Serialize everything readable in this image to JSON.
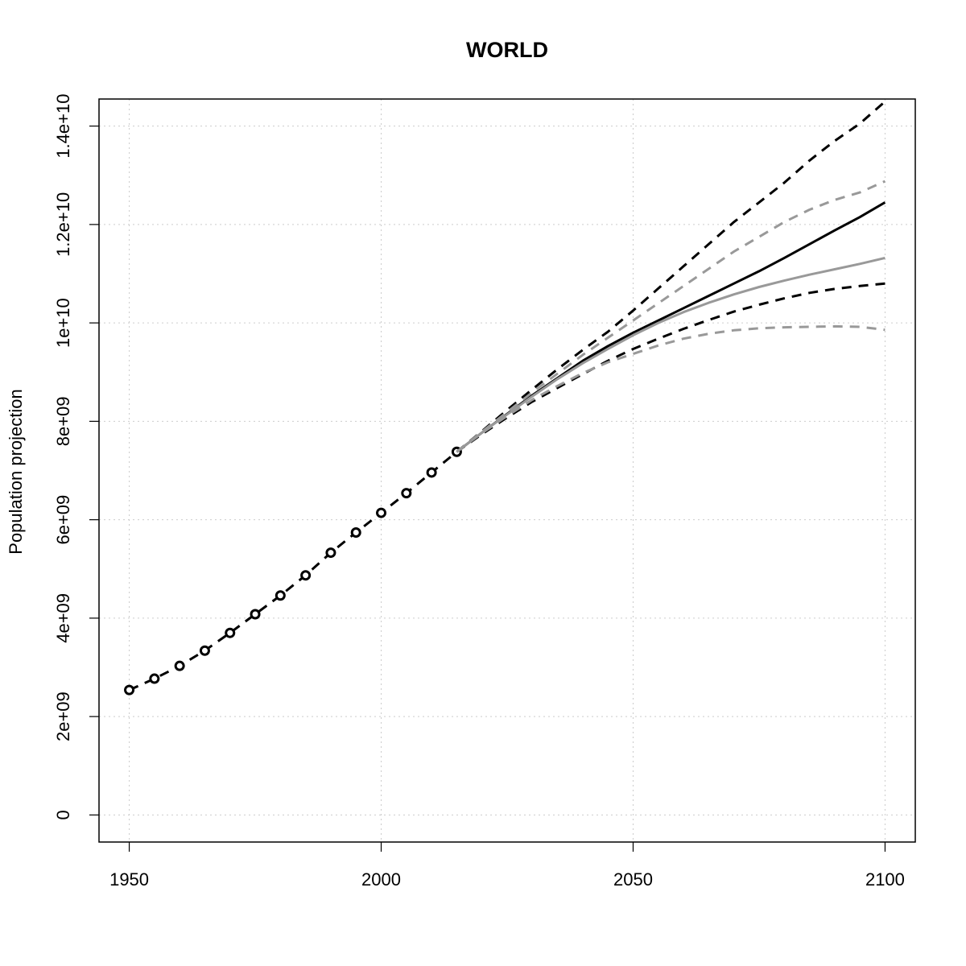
{
  "chart_data": {
    "type": "line",
    "title": "WORLD",
    "xlabel": "",
    "ylabel": "Population projection",
    "xlim": [
      1944,
      2106
    ],
    "ylim": [
      -550000000,
      14550000000
    ],
    "grid": true,
    "legend": "none",
    "x_ticks": [
      1950,
      2000,
      2050,
      2100
    ],
    "y_ticks": [
      {
        "value": 0,
        "label": "0"
      },
      {
        "value": 2000000000,
        "label": "2e+09"
      },
      {
        "value": 4000000000,
        "label": "4e+09"
      },
      {
        "value": 6000000000,
        "label": "6e+09"
      },
      {
        "value": 8000000000,
        "label": "8e+09"
      },
      {
        "value": 10000000000,
        "label": "1e+10"
      },
      {
        "value": 12000000000,
        "label": "1.2e+10"
      },
      {
        "value": 14000000000,
        "label": "1.4e+10"
      }
    ],
    "series": [
      {
        "style": "observed",
        "color": "#000000",
        "dash": true,
        "markers": "circle",
        "x": [
          1950,
          1955,
          1960,
          1965,
          1970,
          1975,
          1980,
          1985,
          1990,
          1995,
          2000,
          2005,
          2010,
          2015
        ],
        "y": [
          2540000000,
          2770000000,
          3030000000,
          3340000000,
          3700000000,
          4080000000,
          4460000000,
          4870000000,
          5330000000,
          5740000000,
          6140000000,
          6540000000,
          6960000000,
          7380000000
        ]
      },
      {
        "style": "median",
        "color": "#000000",
        "dash": false,
        "x": [
          2015,
          2020,
          2025,
          2030,
          2035,
          2040,
          2045,
          2050,
          2055,
          2060,
          2065,
          2070,
          2075,
          2080,
          2085,
          2090,
          2095,
          2100
        ],
        "y": [
          7380000000,
          7770000000,
          8150000000,
          8530000000,
          8880000000,
          9230000000,
          9530000000,
          9800000000,
          10050000000,
          10300000000,
          10550000000,
          10800000000,
          11050000000,
          11320000000,
          11600000000,
          11880000000,
          12150000000,
          12450000000
        ]
      },
      {
        "style": "upper-95",
        "color": "#000000",
        "dash": true,
        "x": [
          2015,
          2020,
          2025,
          2030,
          2035,
          2040,
          2045,
          2050,
          2055,
          2060,
          2065,
          2070,
          2075,
          2080,
          2085,
          2090,
          2095,
          2100
        ],
        "y": [
          7380000000,
          7800000000,
          8230000000,
          8650000000,
          9060000000,
          9450000000,
          9820000000,
          10250000000,
          10700000000,
          11150000000,
          11600000000,
          12050000000,
          12450000000,
          12850000000,
          13300000000,
          13700000000,
          14050000000,
          14500000000
        ]
      },
      {
        "style": "lower-95",
        "color": "#000000",
        "dash": true,
        "x": [
          2015,
          2020,
          2025,
          2030,
          2035,
          2040,
          2045,
          2050,
          2055,
          2060,
          2065,
          2070,
          2075,
          2080,
          2085,
          2090,
          2095,
          2100
        ],
        "y": [
          7380000000,
          7740000000,
          8080000000,
          8400000000,
          8680000000,
          8960000000,
          9230000000,
          9470000000,
          9680000000,
          9880000000,
          10060000000,
          10230000000,
          10370000000,
          10500000000,
          10610000000,
          10690000000,
          10750000000,
          10800000000
        ]
      },
      {
        "style": "upper-80",
        "color": "#999999",
        "dash": true,
        "x": [
          2015,
          2020,
          2025,
          2030,
          2035,
          2040,
          2045,
          2050,
          2055,
          2060,
          2065,
          2070,
          2075,
          2080,
          2085,
          2090,
          2095,
          2100
        ],
        "y": [
          7380000000,
          7790000000,
          8190000000,
          8590000000,
          8970000000,
          9350000000,
          9700000000,
          10050000000,
          10400000000,
          10750000000,
          11100000000,
          11450000000,
          11750000000,
          12050000000,
          12300000000,
          12500000000,
          12650000000,
          12880000000
        ]
      },
      {
        "style": "lower-80",
        "color": "#999999",
        "dash": true,
        "x": [
          2015,
          2020,
          2025,
          2030,
          2035,
          2040,
          2045,
          2050,
          2055,
          2060,
          2065,
          2070,
          2075,
          2080,
          2085,
          2090,
          2095,
          2100
        ],
        "y": [
          7380000000,
          7760000000,
          8110000000,
          8440000000,
          8720000000,
          8980000000,
          9200000000,
          9370000000,
          9540000000,
          9680000000,
          9780000000,
          9850000000,
          9890000000,
          9910000000,
          9920000000,
          9930000000,
          9920000000,
          9860000000
        ]
      },
      {
        "style": "mean",
        "color": "#999999",
        "dash": false,
        "x": [
          2015,
          2020,
          2025,
          2030,
          2035,
          2040,
          2045,
          2050,
          2055,
          2060,
          2065,
          2070,
          2075,
          2080,
          2085,
          2090,
          2095,
          2100
        ],
        "y": [
          7380000000,
          7770000000,
          8140000000,
          8510000000,
          8860000000,
          9180000000,
          9470000000,
          9750000000,
          10000000000,
          10220000000,
          10410000000,
          10580000000,
          10730000000,
          10860000000,
          10980000000,
          11090000000,
          11200000000,
          11320000000
        ]
      }
    ]
  }
}
